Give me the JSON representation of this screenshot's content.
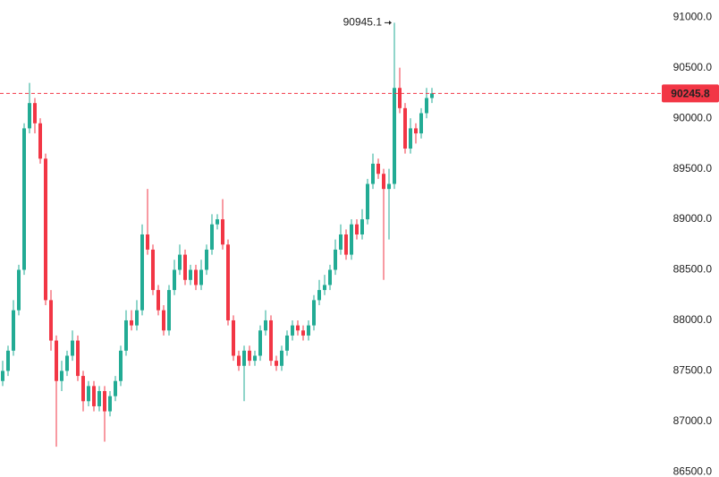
{
  "chart_data": {
    "type": "candlestick",
    "up_color": "#22ab94",
    "down_color": "#f23645",
    "ylim": [
      86450,
      91170
    ],
    "yticks": [
      {
        "value": 91000,
        "label": "91000.0"
      },
      {
        "value": 90500,
        "label": "90500.0"
      },
      {
        "value": 90000,
        "label": "90000.0"
      },
      {
        "value": 89500,
        "label": "89500.0"
      },
      {
        "value": 89000,
        "label": "89000.0"
      },
      {
        "value": 88500,
        "label": "88500.0"
      },
      {
        "value": 88000,
        "label": "88000.0"
      },
      {
        "value": 87500,
        "label": "87500.0"
      },
      {
        "value": 87000,
        "label": "87000.0"
      },
      {
        "value": 86500,
        "label": "86500.0"
      }
    ],
    "grid": false,
    "ohlc": [
      [
        87400,
        87600,
        87350,
        87500
      ],
      [
        87500,
        87750,
        87450,
        87700
      ],
      [
        87700,
        88200,
        87650,
        88100
      ],
      [
        88100,
        88550,
        88050,
        88500
      ],
      [
        88500,
        89950,
        88450,
        89900
      ],
      [
        89900,
        90350,
        89850,
        90150
      ],
      [
        90150,
        90200,
        89850,
        89950
      ],
      [
        89950,
        90000,
        89550,
        89600
      ],
      [
        89600,
        89650,
        88150,
        88200
      ],
      [
        88200,
        88300,
        87700,
        87800
      ],
      [
        87800,
        87850,
        86750,
        87400
      ],
      [
        87400,
        87600,
        87300,
        87500
      ],
      [
        87500,
        87700,
        87450,
        87650
      ],
      [
        87650,
        87900,
        87600,
        87800
      ],
      [
        87800,
        87850,
        87400,
        87450
      ],
      [
        87450,
        87500,
        87100,
        87200
      ],
      [
        87200,
        87400,
        87150,
        87350
      ],
      [
        87350,
        87400,
        87100,
        87150
      ],
      [
        87150,
        87350,
        87100,
        87300
      ],
      [
        87300,
        87350,
        86800,
        87100
      ],
      [
        87100,
        87300,
        87050,
        87250
      ],
      [
        87250,
        87450,
        87200,
        87400
      ],
      [
        87400,
        87750,
        87350,
        87700
      ],
      [
        87700,
        88100,
        87650,
        88000
      ],
      [
        88000,
        88100,
        87900,
        87950
      ],
      [
        87950,
        88200,
        87900,
        88100
      ],
      [
        88100,
        88950,
        88050,
        88850
      ],
      [
        88850,
        89300,
        88650,
        88700
      ],
      [
        88700,
        88750,
        88250,
        88300
      ],
      [
        88300,
        88350,
        88050,
        88100
      ],
      [
        88100,
        88150,
        87850,
        87900
      ],
      [
        87900,
        88350,
        87850,
        88300
      ],
      [
        88300,
        88600,
        88250,
        88500
      ],
      [
        88500,
        88750,
        88450,
        88650
      ],
      [
        88650,
        88700,
        88350,
        88400
      ],
      [
        88400,
        88550,
        88350,
        88500
      ],
      [
        88500,
        88550,
        88300,
        88350
      ],
      [
        88350,
        88600,
        88300,
        88500
      ],
      [
        88500,
        88750,
        88450,
        88700
      ],
      [
        88700,
        89050,
        88650,
        88950
      ],
      [
        88950,
        89050,
        88900,
        89000
      ],
      [
        89000,
        89200,
        88700,
        88750
      ],
      [
        88750,
        88800,
        87950,
        88000
      ],
      [
        88000,
        88050,
        87600,
        87650
      ],
      [
        87650,
        87700,
        87500,
        87550
      ],
      [
        87550,
        87750,
        87200,
        87700
      ],
      [
        87700,
        87750,
        87550,
        87600
      ],
      [
        87600,
        87700,
        87550,
        87650
      ],
      [
        87650,
        87950,
        87600,
        87900
      ],
      [
        87900,
        88100,
        87850,
        88000
      ],
      [
        88000,
        88050,
        87550,
        87600
      ],
      [
        87600,
        87650,
        87500,
        87550
      ],
      [
        87550,
        87750,
        87500,
        87700
      ],
      [
        87700,
        87900,
        87650,
        87850
      ],
      [
        87850,
        88000,
        87800,
        87950
      ],
      [
        87950,
        88000,
        87850,
        87900
      ],
      [
        87900,
        87950,
        87800,
        87850
      ],
      [
        87850,
        88000,
        87800,
        87950
      ],
      [
        87950,
        88250,
        87900,
        88200
      ],
      [
        88200,
        88400,
        88150,
        88300
      ],
      [
        88300,
        88450,
        88250,
        88350
      ],
      [
        88350,
        88550,
        88300,
        88500
      ],
      [
        88500,
        88800,
        88450,
        88700
      ],
      [
        88700,
        88950,
        88650,
        88850
      ],
      [
        88850,
        88900,
        88600,
        88650
      ],
      [
        88650,
        89000,
        88600,
        88950
      ],
      [
        88950,
        89000,
        88800,
        88850
      ],
      [
        88850,
        89100,
        88800,
        89000
      ],
      [
        89000,
        89400,
        88950,
        89350
      ],
      [
        89350,
        89650,
        89300,
        89550
      ],
      [
        89550,
        89600,
        89400,
        89450
      ],
      [
        89450,
        89500,
        88400,
        89300
      ],
      [
        89300,
        89500,
        88800,
        89350
      ],
      [
        89350,
        90945.1,
        89300,
        90300
      ],
      [
        90300,
        90500,
        90050,
        90100
      ],
      [
        90100,
        90150,
        89650,
        89700
      ],
      [
        89700,
        90000,
        89650,
        89900
      ],
      [
        89900,
        89950,
        89750,
        89850
      ],
      [
        89850,
        90100,
        89800,
        90050
      ],
      [
        90050,
        90300,
        90000,
        90200
      ],
      [
        90200,
        90300,
        90150,
        90245.8
      ]
    ]
  }
}
